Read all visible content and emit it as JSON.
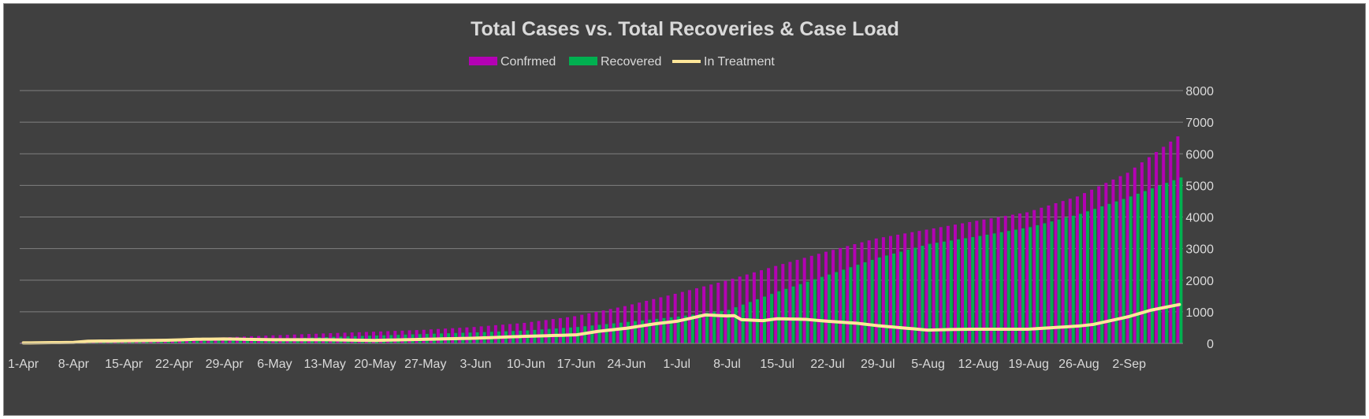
{
  "chart_data": {
    "type": "bar",
    "title": "Total Cases vs. Total Recoveries & Case Load",
    "xlabel": "",
    "ylabel": "",
    "ylim": [
      0,
      8000
    ],
    "y_ticks": [
      0,
      1000,
      2000,
      3000,
      4000,
      5000,
      6000,
      7000,
      8000
    ],
    "x_ticks": [
      "1-Apr",
      "8-Apr",
      "15-Apr",
      "22-Apr",
      "29-Apr",
      "6-May",
      "13-May",
      "20-May",
      "27-May",
      "3-Jun",
      "10-Jun",
      "17-Jun",
      "24-Jun",
      "1-Jul",
      "8-Jul",
      "15-Jul",
      "22-Jul",
      "29-Jul",
      "5-Aug",
      "12-Aug",
      "19-Aug",
      "26-Aug",
      "2-Sep"
    ],
    "x_range": [
      "1-Apr",
      "9-Sep"
    ],
    "grid": "horizontal",
    "legend_position": "top",
    "series_keyframes_note_removed": true,
    "series": [
      {
        "name": "Confrmed",
        "type": "bar",
        "color": "#b400b4",
        "keyframes": [
          [
            "1-Apr",
            20
          ],
          [
            "8-Apr",
            45
          ],
          [
            "15-Apr",
            90
          ],
          [
            "22-Apr",
            135
          ],
          [
            "29-Apr",
            190
          ],
          [
            "6-May",
            255
          ],
          [
            "13-May",
            315
          ],
          [
            "20-May",
            370
          ],
          [
            "27-May",
            430
          ],
          [
            "3-Jun",
            520
          ],
          [
            "10-Jun",
            650
          ],
          [
            "17-Jun",
            860
          ],
          [
            "24-Jun",
            1180
          ],
          [
            "1-Jul",
            1570
          ],
          [
            "8-Jul",
            1980
          ],
          [
            "15-Jul",
            2450
          ],
          [
            "22-Jul",
            2900
          ],
          [
            "29-Jul",
            3320
          ],
          [
            "5-Aug",
            3600
          ],
          [
            "12-Aug",
            3880
          ],
          [
            "19-Aug",
            4150
          ],
          [
            "26-Aug",
            4650
          ],
          [
            "2-Sep",
            5400
          ],
          [
            "9-Sep",
            6550
          ]
        ]
      },
      {
        "name": "Recovered",
        "type": "bar",
        "color": "#00b050",
        "keyframes": [
          [
            "1-Apr",
            5
          ],
          [
            "8-Apr",
            15
          ],
          [
            "15-Apr",
            35
          ],
          [
            "22-Apr",
            60
          ],
          [
            "29-Apr",
            100
          ],
          [
            "6-May",
            145
          ],
          [
            "13-May",
            200
          ],
          [
            "20-May",
            250
          ],
          [
            "27-May",
            300
          ],
          [
            "3-Jun",
            350
          ],
          [
            "10-Jun",
            410
          ],
          [
            "17-Jun",
            520
          ],
          [
            "24-Jun",
            680
          ],
          [
            "1-Jul",
            850
          ],
          [
            "8-Jul",
            1060
          ],
          [
            "15-Jul",
            1650
          ],
          [
            "22-Jul",
            2180
          ],
          [
            "29-Jul",
            2720
          ],
          [
            "5-Aug",
            3150
          ],
          [
            "12-Aug",
            3400
          ],
          [
            "19-Aug",
            3680
          ],
          [
            "26-Aug",
            4100
          ],
          [
            "2-Sep",
            4650
          ],
          [
            "9-Sep",
            5250
          ]
        ]
      },
      {
        "name": "In Treatment",
        "type": "line",
        "color": "#ffe699",
        "keyframes": [
          [
            "1-Apr",
            15
          ],
          [
            "8-Apr",
            30
          ],
          [
            "10-Apr",
            70
          ],
          [
            "15-Apr",
            80
          ],
          [
            "22-Apr",
            105
          ],
          [
            "25-Apr",
            130
          ],
          [
            "29-Apr",
            140
          ],
          [
            "6-May",
            115
          ],
          [
            "13-May",
            115
          ],
          [
            "20-May",
            95
          ],
          [
            "27-May",
            130
          ],
          [
            "3-Jun",
            165
          ],
          [
            "10-Jun",
            225
          ],
          [
            "17-Jun",
            270
          ],
          [
            "20-Jun",
            380
          ],
          [
            "24-Jun",
            480
          ],
          [
            "28-Jun",
            620
          ],
          [
            "1-Jul",
            700
          ],
          [
            "5-Jul",
            900
          ],
          [
            "8-Jul",
            870
          ],
          [
            "9-Jul",
            880
          ],
          [
            "10-Jul",
            750
          ],
          [
            "13-Jul",
            720
          ],
          [
            "15-Jul",
            780
          ],
          [
            "19-Jul",
            760
          ],
          [
            "22-Jul",
            700
          ],
          [
            "26-Jul",
            640
          ],
          [
            "29-Jul",
            560
          ],
          [
            "2-Aug",
            480
          ],
          [
            "5-Aug",
            420
          ],
          [
            "8-Aug",
            440
          ],
          [
            "12-Aug",
            450
          ],
          [
            "19-Aug",
            450
          ],
          [
            "26-Aug",
            550
          ],
          [
            "28-Aug",
            600
          ],
          [
            "2-Sep",
            850
          ],
          [
            "5-Sep",
            1050
          ],
          [
            "9-Sep",
            1230
          ]
        ]
      }
    ]
  }
}
